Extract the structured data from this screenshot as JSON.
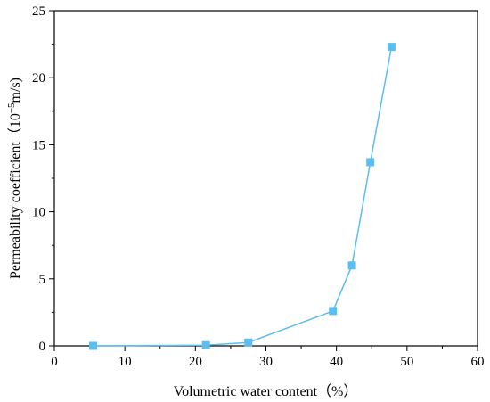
{
  "chart_data": {
    "type": "line",
    "xlabel": "Volumetric water content（%）",
    "ylabel": "Permeability coefficient（10",
    "ylabel_exp": "−5",
    "ylabel_unit": "m/s)",
    "xlim": [
      0,
      60
    ],
    "ylim": [
      0,
      25
    ],
    "xticks": [
      0,
      10,
      20,
      30,
      40,
      50,
      60
    ],
    "yticks": [
      0,
      5,
      10,
      15,
      20,
      25
    ],
    "grid": false,
    "marker": "square",
    "color": "#5BBEF0",
    "series": [
      {
        "x": [
          5.5,
          21.5,
          27.5,
          39.5,
          42.2,
          44.8,
          47.8
        ],
        "y": [
          0.0,
          0.05,
          0.25,
          2.6,
          6.0,
          13.7,
          22.3
        ]
      }
    ]
  }
}
